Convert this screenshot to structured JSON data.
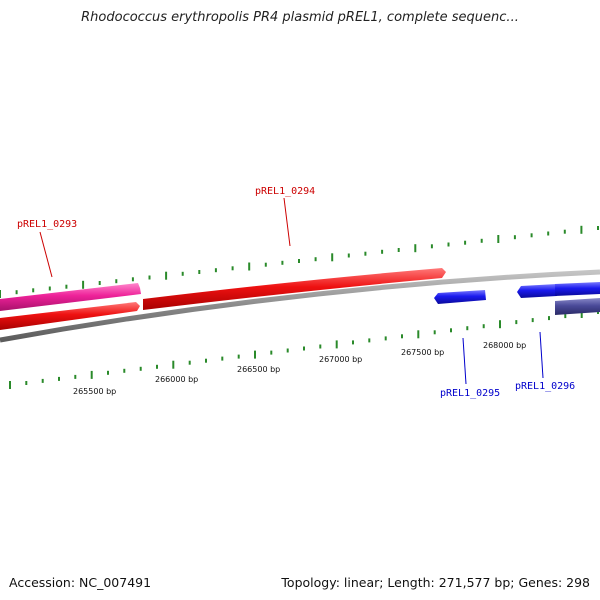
{
  "title": "Rhodococcus erythropolis PR4 plasmid pREL1, complete sequenc...",
  "footer": {
    "accession": "Accession: NC_007491",
    "summary": "Topology: linear; Length: 271,577 bp; Genes: 298"
  },
  "colors": {
    "forward_gene": "#ee1111",
    "forward_gene_alt": "#ee2299",
    "reverse_gene": "#1a1aee",
    "reverse_gene_alt": "#4a4a99",
    "backbone": "#8a8a8a",
    "tick": "#2a8a2a",
    "forward_label": "#cc0000",
    "reverse_label": "#0000cc"
  },
  "scale_labels": [
    "265500 bp",
    "266000 bp",
    "266500 bp",
    "267000 bp",
    "267500 bp",
    "268000 bp"
  ],
  "gene_labels": {
    "forward": [
      "pREL1_0293",
      "pREL1_0294"
    ],
    "reverse": [
      "pREL1_0295",
      "pREL1_0296"
    ]
  }
}
